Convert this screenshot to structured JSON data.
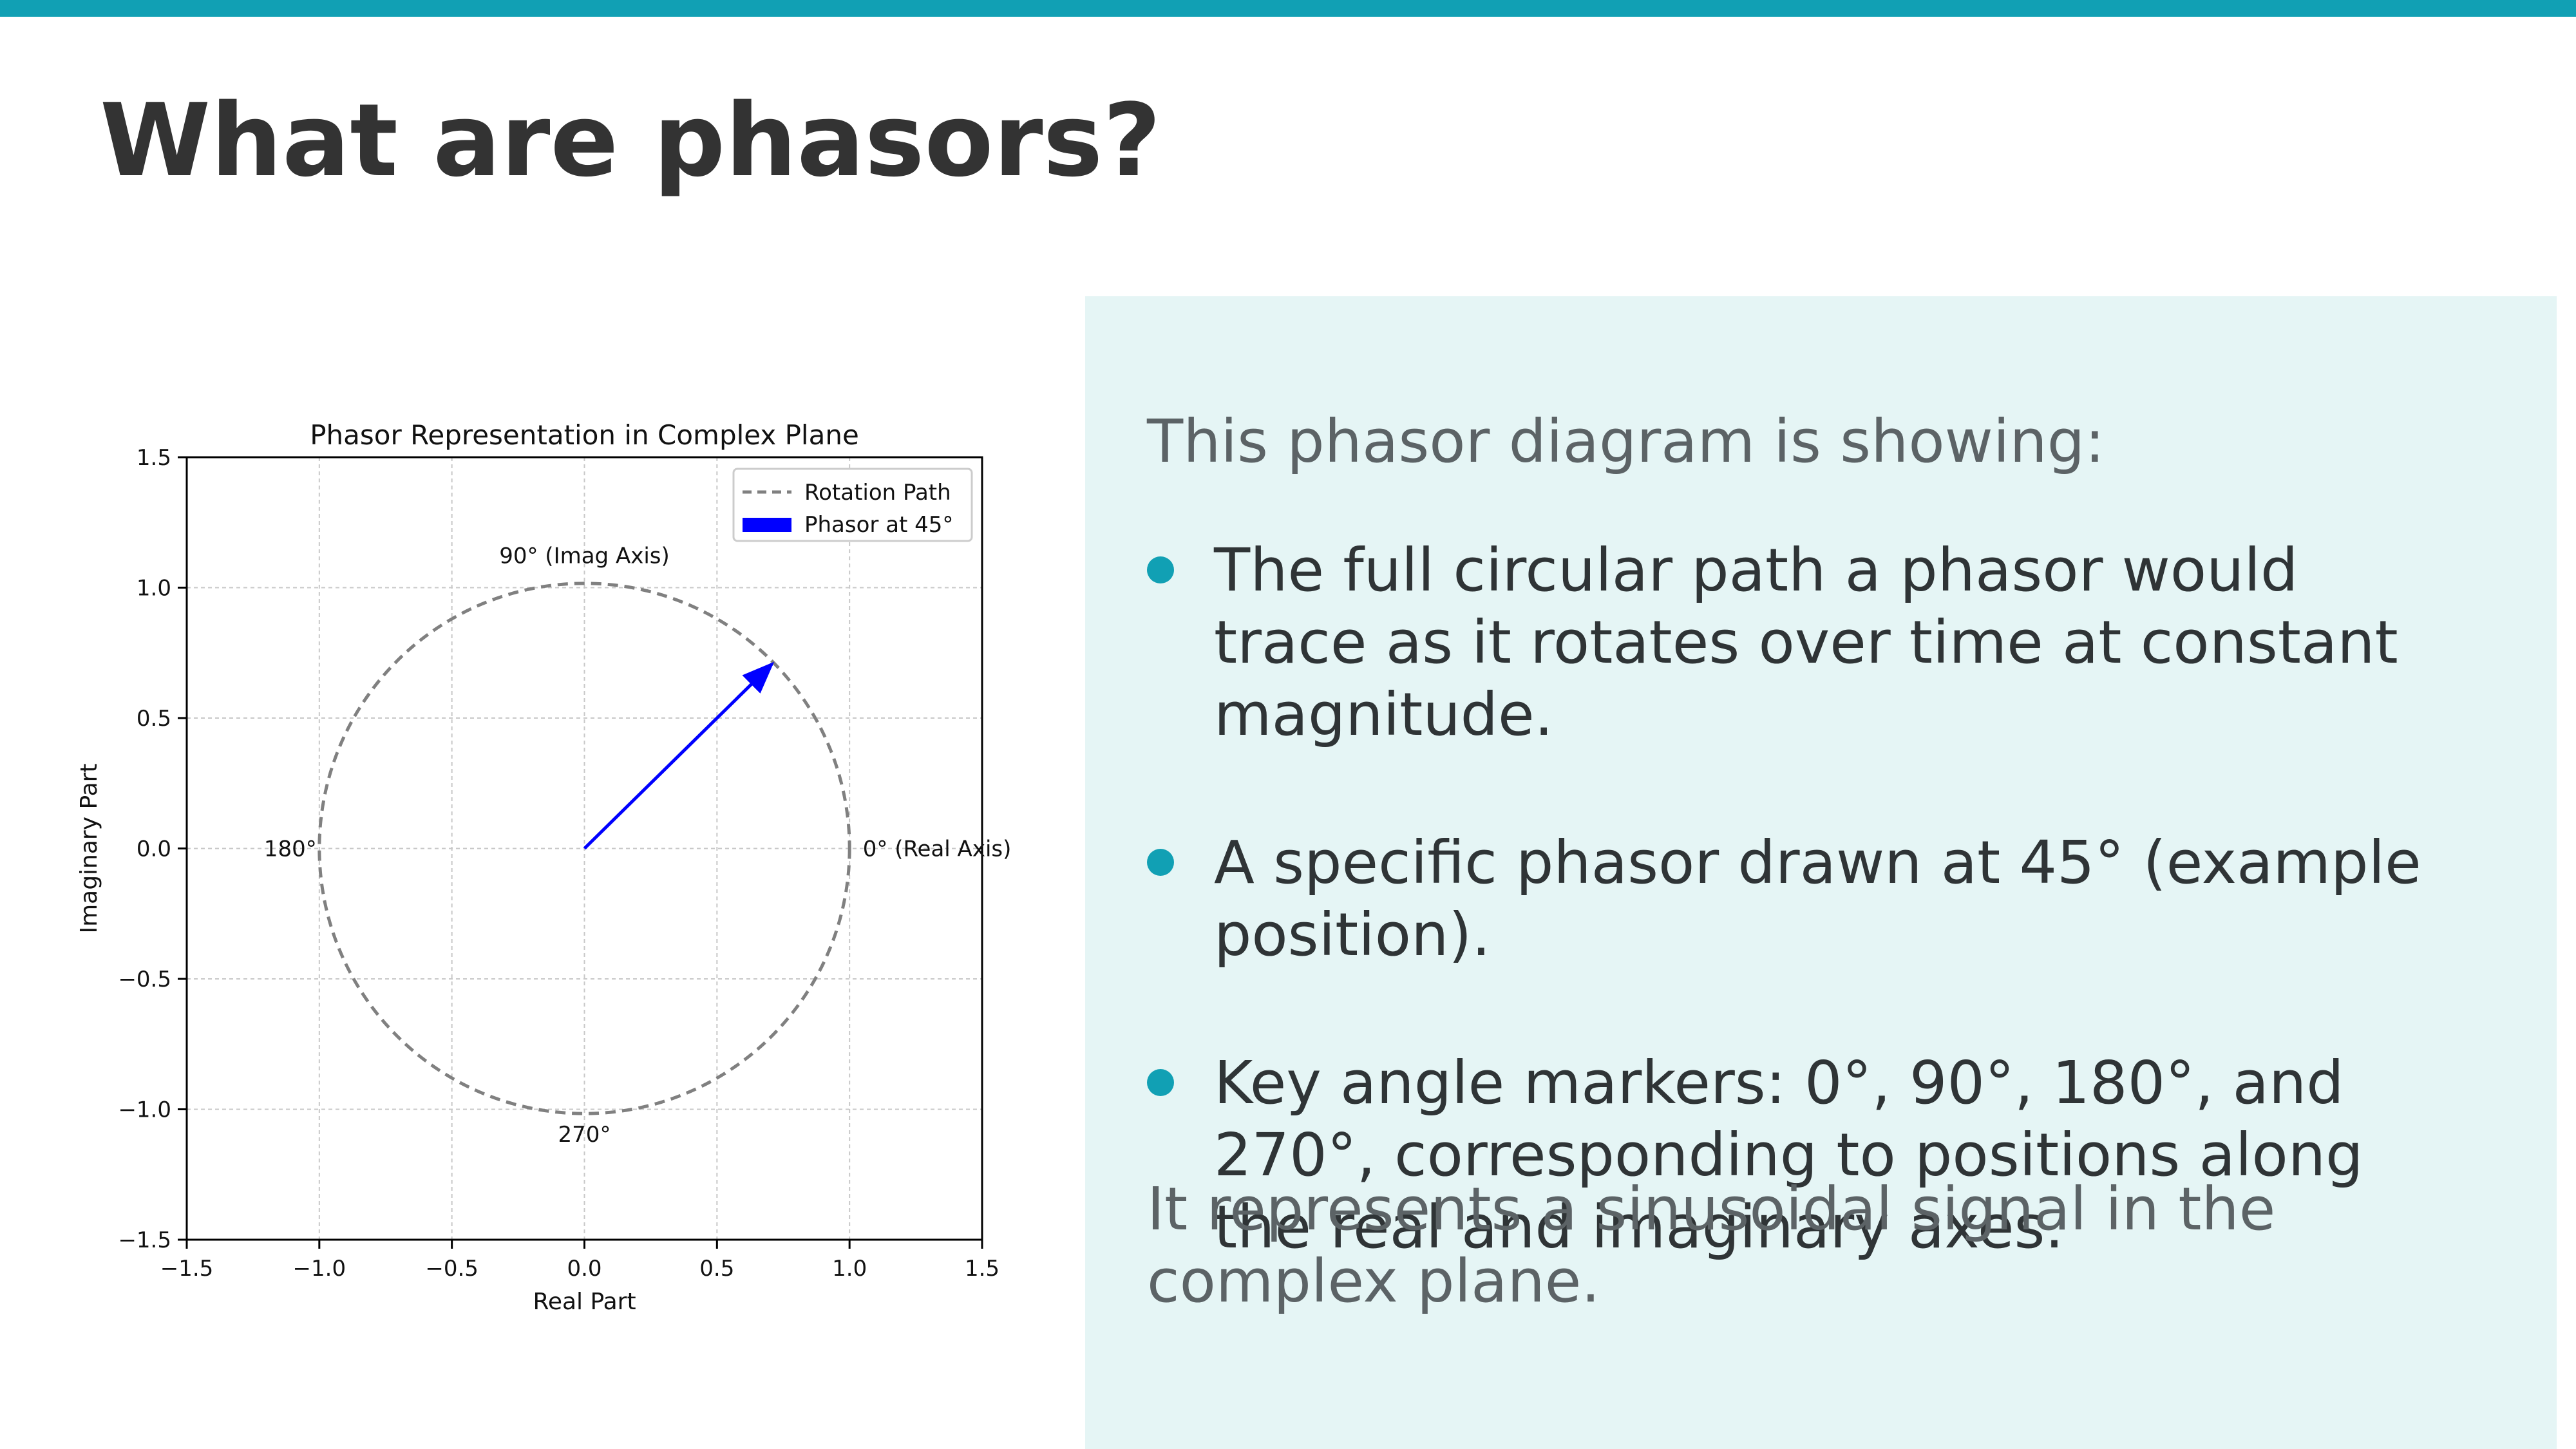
{
  "slide": {
    "title": "What are phasors?",
    "accent_color": "#11a0b4",
    "panel_color": "#e5f5f5"
  },
  "panel": {
    "intro": "This phasor diagram is showing:",
    "bullets": [
      "The full circular path a phasor would trace as it rotates over time at constant magnitude.",
      "A specific phasor drawn at 45° (example position).",
      "Key angle markers: 0°, 90°, 180°, and 270°, corresponding to positions along the real and imaginary axes."
    ],
    "outro": "It represents a sinusoidal signal in the complex plane."
  },
  "chart_data": {
    "type": "line",
    "title": "Phasor Representation in Complex Plane",
    "xlabel": "Real Part",
    "ylabel": "Imaginary Part",
    "xlim": [
      -1.5,
      1.5
    ],
    "ylim": [
      -1.5,
      1.5
    ],
    "xticks": [
      "−1.5",
      "−1.0",
      "−0.5",
      "0.0",
      "0.5",
      "1.0",
      "1.5"
    ],
    "yticks": [
      "1.5",
      "1.0",
      "0.5",
      "0.0",
      "−0.5",
      "−1.0",
      "−1.5"
    ],
    "grid": true,
    "legend_position": "upper right",
    "series": [
      {
        "name": "Rotation Path",
        "kind": "circle",
        "radius": 1.0,
        "style": "dashed",
        "color": "#808080"
      },
      {
        "name": "Phasor at 45°",
        "kind": "arrow",
        "magnitude": 1.0,
        "angle_deg": 45,
        "from": [
          0,
          0
        ],
        "to": [
          0.707,
          0.707
        ],
        "color": "#0000ff"
      }
    ],
    "annotations": [
      {
        "text": "0° (Real Axis)",
        "x": 1.05,
        "y": 0
      },
      {
        "text": "90° (Imag Axis)",
        "x": 0,
        "y": 1.05
      },
      {
        "text": "180°",
        "x": -1.0,
        "y": 0
      },
      {
        "text": "270°",
        "x": 0,
        "y": -1.05
      }
    ]
  }
}
